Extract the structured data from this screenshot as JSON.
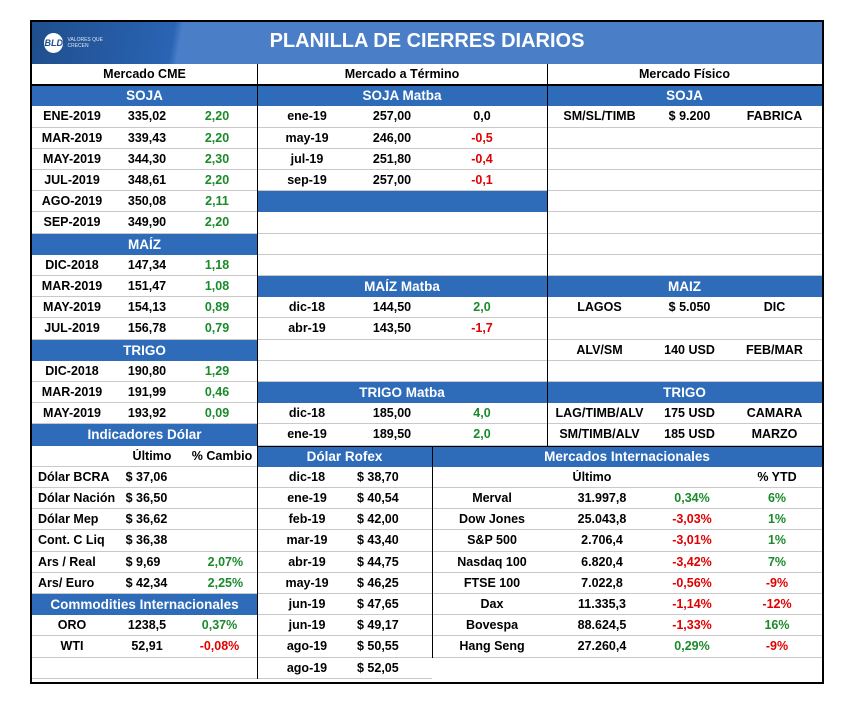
{
  "header": {
    "logo": "BLD",
    "logo_tagline": "VALORES QUE CRECEN",
    "title": "PLANILLA DE CIERRES DIARIOS"
  },
  "columns": {
    "cme": "Mercado CME",
    "termino": "Mercado a Término",
    "fisico": "Mercado Físico"
  },
  "cme": {
    "soja_title": "SOJA",
    "soja": [
      [
        "ENE-2019",
        "335,02",
        "2,20"
      ],
      [
        "MAR-2019",
        "339,43",
        "2,20"
      ],
      [
        "MAY-2019",
        "344,30",
        "2,30"
      ],
      [
        "JUL-2019",
        "348,61",
        "2,20"
      ],
      [
        "AGO-2019",
        "350,08",
        "2,11"
      ],
      [
        "SEP-2019",
        "349,90",
        "2,20"
      ]
    ],
    "maiz_title": "MAÍZ",
    "maiz": [
      [
        "DIC-2018",
        "147,34",
        "1,18"
      ],
      [
        "MAR-2019",
        "151,47",
        "1,08"
      ],
      [
        "MAY-2019",
        "154,13",
        "0,89"
      ],
      [
        "JUL-2019",
        "156,78",
        "0,79"
      ]
    ],
    "trigo_title": "TRIGO",
    "trigo": [
      [
        "DIC-2018",
        "190,80",
        "1,29"
      ],
      [
        "MAR-2019",
        "191,99",
        "0,46"
      ],
      [
        "MAY-2019",
        "193,92",
        "0,09"
      ]
    ]
  },
  "matba": {
    "soja_title": "SOJA Matba",
    "soja": [
      [
        "ene-19",
        "257,00",
        "0,0",
        "z"
      ],
      [
        "may-19",
        "246,00",
        "-0,5",
        "n"
      ],
      [
        "jul-19",
        "251,80",
        "-0,4",
        "n"
      ],
      [
        "sep-19",
        "257,00",
        "-0,1",
        "n"
      ]
    ],
    "maiz_title": "MAÍZ Matba",
    "maiz": [
      [
        "dic-18",
        "144,50",
        "2,0",
        "p"
      ],
      [
        "abr-19",
        "143,50",
        "-1,7",
        "n"
      ]
    ],
    "trigo_title": "TRIGO Matba",
    "trigo": [
      [
        "dic-18",
        "185,00",
        "4,0",
        "p"
      ],
      [
        "ene-19",
        "189,50",
        "2,0",
        "p"
      ]
    ]
  },
  "fisico": {
    "soja_title": "SOJA",
    "soja": [
      "SM/SL/TIMB",
      "$ 9.200",
      "FABRICA"
    ],
    "maiz_title": "MAIZ",
    "maiz": [
      [
        "LAGOS",
        "$ 5.050",
        "DIC"
      ],
      [
        "ALV/SM",
        "140 USD",
        "FEB/MAR"
      ]
    ],
    "trigo_title": "TRIGO",
    "trigo": [
      [
        "LAG/TIMB/ALV",
        "175 USD",
        "CAMARA"
      ],
      [
        "SM/TIMB/ALV",
        "185 USD",
        "MARZO"
      ]
    ]
  },
  "dolar": {
    "title": "Indicadores Dólar",
    "col_ultimo": "Último",
    "col_cambio": "% Cambio",
    "rows": [
      [
        "Dólar BCRA",
        "$ 37,06",
        ""
      ],
      [
        "Dólar Nación",
        "$ 36,50",
        ""
      ],
      [
        "Dólar Mep",
        "$ 36,62",
        ""
      ],
      [
        "Cont. C Liq",
        "$ 36,38",
        ""
      ],
      [
        "Ars / Real",
        "$ 9,69",
        "2,07%"
      ],
      [
        "Ars/ Euro",
        "$ 42,34",
        "2,25%"
      ]
    ]
  },
  "commodities": {
    "title": "Commodities Internacionales",
    "rows": [
      [
        "ORO",
        "1238,5",
        "0,37%",
        "p"
      ],
      [
        "WTI",
        "52,91",
        "-0,08%",
        "n"
      ]
    ]
  },
  "rofex": {
    "title": "Dólar Rofex",
    "rows": [
      [
        "dic-18",
        "$ 38,70"
      ],
      [
        "ene-19",
        "$ 40,54"
      ],
      [
        "feb-19",
        "$ 42,00"
      ],
      [
        "mar-19",
        "$ 43,40"
      ],
      [
        "abr-19",
        "$ 44,75"
      ],
      [
        "may-19",
        "$ 46,25"
      ],
      [
        "jun-19",
        "$ 47,65"
      ],
      [
        "jun-19",
        "$ 49,17"
      ],
      [
        "ago-19",
        "$ 50,55"
      ],
      [
        "ago-19",
        "$ 52,05"
      ]
    ]
  },
  "intl": {
    "title": "Mercados Internacionales",
    "col_ultimo": "Último",
    "col_ytd": "% YTD",
    "rows": [
      [
        "Merval",
        "31.997,8",
        "0,34%",
        "p",
        "6%",
        "p"
      ],
      [
        "Dow Jones",
        "25.043,8",
        "-3,03%",
        "n",
        "1%",
        "p"
      ],
      [
        "S&P 500",
        "2.706,4",
        "-3,01%",
        "n",
        "1%",
        "p"
      ],
      [
        "Nasdaq 100",
        "6.820,4",
        "-3,42%",
        "n",
        "7%",
        "p"
      ],
      [
        "FTSE 100",
        "7.022,8",
        "-0,56%",
        "n",
        "-9%",
        "n"
      ],
      [
        "Dax",
        "11.335,3",
        "-1,14%",
        "n",
        "-12%",
        "n"
      ],
      [
        "Bovespa",
        "88.624,5",
        "-1,33%",
        "n",
        "16%",
        "p"
      ],
      [
        "Hang Seng",
        "27.260,4",
        "0,29%",
        "p",
        "-9%",
        "n"
      ]
    ]
  }
}
